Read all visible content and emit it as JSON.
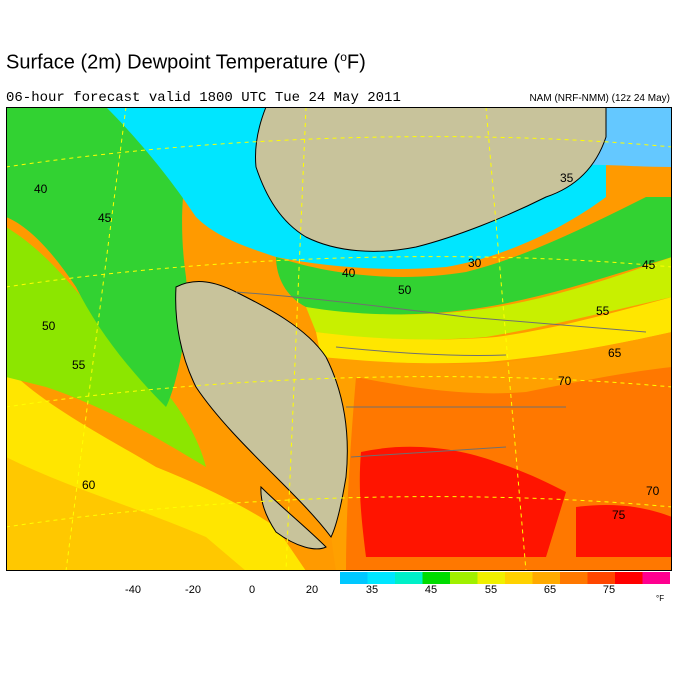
{
  "title": {
    "text": "Surface (2m) Dewpoint Temperature (",
    "degree": "o",
    "unit": "F)"
  },
  "subtitle": "06-hour forecast valid 1800 UTC Tue 24 May 2011",
  "model_label": "NAM (NRF-NMM) (12z 24 May)",
  "map_labels": [
    "40",
    "45",
    "50",
    "55",
    "60",
    "35",
    "40",
    "30",
    "45",
    "50",
    "55",
    "65",
    "70",
    "70",
    "75"
  ],
  "colorbar": {
    "ticks": [
      "-40",
      "-20",
      "0",
      "20",
      "35",
      "45",
      "55",
      "65",
      "75"
    ],
    "unit": "°F",
    "colors": [
      "#00c8ff",
      "#00e6ff",
      "#00f0c8",
      "#00dc00",
      "#a0f000",
      "#f0f000",
      "#ffd200",
      "#ffaa00",
      "#ff7800",
      "#ff4600",
      "#ff0000",
      "#ff0090"
    ]
  },
  "colors": {
    "land_mask": "#c8c39b",
    "ocean_high": "#ffa000",
    "ocean_mid": "#ffe400",
    "ocean_cool": "#32d232",
    "cold_cyan": "#00e6ff",
    "arctic": "#64c8ff",
    "gulf_red": "#ff0000"
  }
}
